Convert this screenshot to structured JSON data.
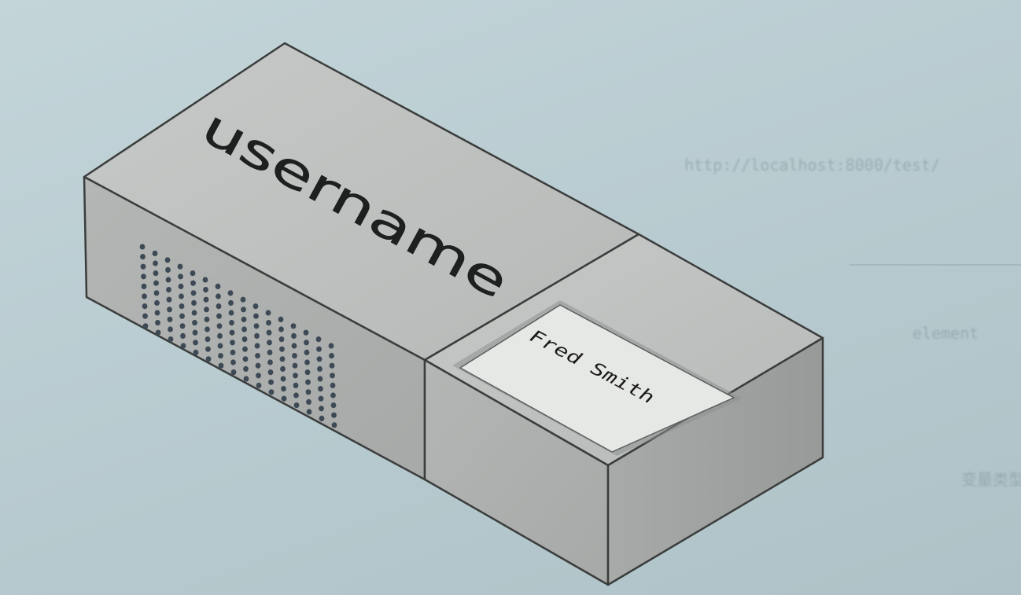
{
  "diagram": {
    "box_label": "username",
    "card_label": "Fred Smith",
    "vent_rows": 9,
    "vent_cols": 16
  },
  "background_text": {
    "lines": [
      "http://localhost:8000/test/",
      "element",
      "变量类型"
    ]
  },
  "colors": {
    "page_bg": "#b9ccd0",
    "box_top": "#bcbfbd",
    "box_left": "#aeb1af",
    "box_right": "#9fa2a0",
    "outline": "#3a3d3c",
    "card": "#e4e6e3",
    "vent_hole": "#3d4a55"
  }
}
